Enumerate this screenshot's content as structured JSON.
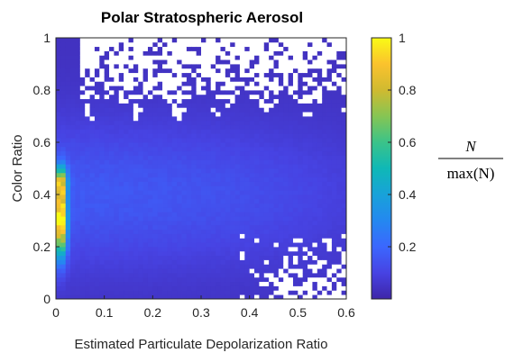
{
  "chart_data": {
    "type": "heatmap",
    "title": "Polar Stratospheric Aerosol",
    "xlabel": "Estimated Particulate Depolarization Ratio",
    "ylabel": "Color Ratio",
    "xlim": [
      0,
      0.6
    ],
    "ylim": [
      0,
      1
    ],
    "x_ticks": [
      "0",
      "0.1",
      "0.2",
      "0.3",
      "0.4",
      "0.5",
      "0.6"
    ],
    "y_ticks": [
      "0",
      "0.2",
      "0.4",
      "0.6",
      "0.8",
      "1"
    ],
    "colorbar": {
      "range": [
        0,
        1
      ],
      "ticks": [
        "0.2",
        "0.4",
        "0.6",
        "0.8",
        "1"
      ],
      "label_numerator": "N",
      "label_denominator": "max(N)",
      "colormap": "parula",
      "empty_bin_color": "#ffffff"
    },
    "grid": false,
    "bins": {
      "x": 60,
      "y": 60
    },
    "density_peaks": [
      {
        "x": 0.01,
        "y": 0.3,
        "value": 1.0
      },
      {
        "x": 0.01,
        "y": 0.45,
        "value": 0.55
      },
      {
        "x": 0.3,
        "y": 0.4,
        "value": 0.12
      }
    ],
    "sparse_regions": [
      {
        "x_range": [
          0.04,
          0.6
        ],
        "y_range": [
          0.75,
          1.0
        ]
      },
      {
        "x_range": [
          0.4,
          0.6
        ],
        "y_range": [
          0.0,
          0.25
        ]
      }
    ]
  }
}
